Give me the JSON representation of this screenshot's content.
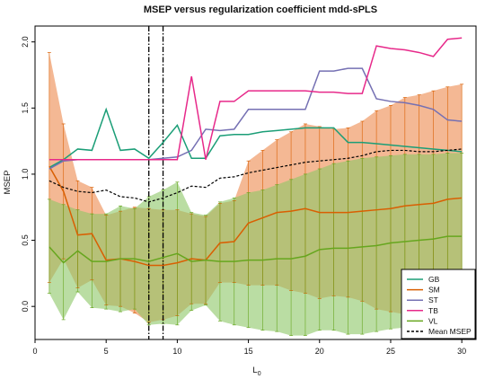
{
  "chart_data": {
    "type": "line",
    "title": "MSEP versus regularization coefficient mdd-sPLS",
    "xlabel": "L",
    "xlabel_sub": "0",
    "ylabel": "MSEP",
    "xlim": [
      0,
      31
    ],
    "ylim": [
      -0.25,
      2.12
    ],
    "x_ticks": [
      "0",
      "5",
      "10",
      "15",
      "20",
      "25",
      "30"
    ],
    "y_ticks": [
      "0.0",
      "0.5",
      "1.0",
      "1.5",
      "2.0"
    ],
    "x": [
      1,
      2,
      3,
      4,
      5,
      6,
      7,
      8,
      9,
      10,
      11,
      12,
      13,
      14,
      15,
      16,
      17,
      18,
      19,
      20,
      21,
      22,
      23,
      24,
      25,
      26,
      27,
      28,
      29,
      30
    ],
    "vlines": [
      8,
      9
    ],
    "series": [
      {
        "name": "GB",
        "color": "#1b9e77",
        "dash": "",
        "values": [
          1.05,
          1.11,
          1.19,
          1.18,
          1.49,
          1.18,
          1.19,
          1.12,
          1.24,
          1.37,
          1.12,
          1.12,
          1.29,
          1.3,
          1.3,
          1.32,
          1.33,
          1.34,
          1.35,
          1.35,
          1.35,
          1.24,
          1.24,
          1.23,
          1.22,
          1.21,
          1.2,
          1.19,
          1.18,
          1.17
        ]
      },
      {
        "name": "SM",
        "color": "#d95f02",
        "dash": "",
        "values": [
          1.06,
          0.87,
          0.54,
          0.55,
          0.35,
          0.36,
          0.34,
          0.31,
          0.31,
          0.33,
          0.36,
          0.35,
          0.48,
          0.49,
          0.63,
          0.67,
          0.71,
          0.72,
          0.74,
          0.71,
          0.71,
          0.71,
          0.72,
          0.73,
          0.74,
          0.76,
          0.77,
          0.78,
          0.81,
          0.82
        ]
      },
      {
        "name": "ST",
        "color": "#7570b3",
        "dash": "",
        "values": [
          1.04,
          1.1,
          1.11,
          1.11,
          1.11,
          1.11,
          1.11,
          1.11,
          1.12,
          1.13,
          1.18,
          1.34,
          1.33,
          1.34,
          1.49,
          1.49,
          1.49,
          1.49,
          1.49,
          1.78,
          1.78,
          1.8,
          1.8,
          1.57,
          1.55,
          1.54,
          1.52,
          1.49,
          1.41,
          1.4
        ]
      },
      {
        "name": "TB",
        "color": "#e7298a",
        "dash": "",
        "values": [
          1.11,
          1.11,
          1.11,
          1.11,
          1.11,
          1.11,
          1.11,
          1.11,
          1.11,
          1.11,
          1.74,
          1.11,
          1.55,
          1.55,
          1.63,
          1.63,
          1.63,
          1.63,
          1.63,
          1.62,
          1.62,
          1.61,
          1.61,
          1.97,
          1.95,
          1.94,
          1.92,
          1.89,
          2.02,
          2.03
        ]
      },
      {
        "name": "VL",
        "color": "#66a61e",
        "dash": "",
        "values": [
          0.45,
          0.33,
          0.42,
          0.34,
          0.34,
          0.36,
          0.36,
          0.34,
          0.37,
          0.4,
          0.34,
          0.35,
          0.34,
          0.34,
          0.35,
          0.35,
          0.36,
          0.36,
          0.38,
          0.43,
          0.44,
          0.44,
          0.45,
          0.46,
          0.48,
          0.49,
          0.5,
          0.51,
          0.53,
          0.53
        ]
      },
      {
        "name": "Mean MSEP",
        "color": "#000000",
        "dash": "3,2",
        "values": [
          0.95,
          0.9,
          0.87,
          0.86,
          0.88,
          0.83,
          0.82,
          0.79,
          0.82,
          0.86,
          0.91,
          0.9,
          0.97,
          0.98,
          1.01,
          1.03,
          1.05,
          1.07,
          1.09,
          1.1,
          1.11,
          1.12,
          1.14,
          1.17,
          1.18,
          1.18,
          1.17,
          1.17,
          1.18,
          1.19
        ]
      }
    ],
    "bands": [
      {
        "series": "SM",
        "fill": "#f0a070",
        "opacity": 0.75,
        "upper": [
          1.92,
          1.38,
          0.95,
          0.9,
          0.69,
          0.72,
          0.75,
          0.74,
          0.73,
          0.73,
          0.7,
          0.68,
          0.78,
          0.8,
          1.1,
          1.18,
          1.26,
          1.32,
          1.38,
          1.36,
          1.34,
          1.35,
          1.4,
          1.48,
          1.52,
          1.58,
          1.6,
          1.63,
          1.66,
          1.68
        ],
        "lower": [
          0.18,
          0.36,
          0.14,
          0.2,
          0.01,
          0.0,
          -0.05,
          -0.12,
          -0.1,
          -0.07,
          0.02,
          0.02,
          0.18,
          0.18,
          0.16,
          0.16,
          0.16,
          0.12,
          0.1,
          0.06,
          0.08,
          0.07,
          0.04,
          -0.02,
          -0.04,
          -0.06,
          -0.06,
          -0.07,
          -0.04,
          -0.04
        ]
      },
      {
        "series": "VL",
        "fill": "#8cc665",
        "opacity": 0.6,
        "upper": [
          0.81,
          0.77,
          0.73,
          0.7,
          0.7,
          0.76,
          0.74,
          0.83,
          0.88,
          0.94,
          0.71,
          0.69,
          0.79,
          0.82,
          0.86,
          0.88,
          0.92,
          0.96,
          1.0,
          1.04,
          1.08,
          1.1,
          1.12,
          1.13,
          1.14,
          1.15,
          1.15,
          1.15,
          1.16,
          1.16
        ],
        "lower": [
          0.1,
          -0.1,
          0.11,
          -0.01,
          -0.02,
          -0.04,
          -0.02,
          -0.14,
          -0.13,
          -0.14,
          -0.03,
          0.01,
          -0.11,
          -0.14,
          -0.16,
          -0.18,
          -0.19,
          -0.22,
          -0.22,
          -0.18,
          -0.18,
          -0.21,
          -0.21,
          -0.19,
          -0.17,
          -0.16,
          -0.14,
          -0.13,
          -0.1,
          -0.1
        ]
      }
    ],
    "legend": {
      "placement": "bottom-right"
    },
    "grid": false
  }
}
